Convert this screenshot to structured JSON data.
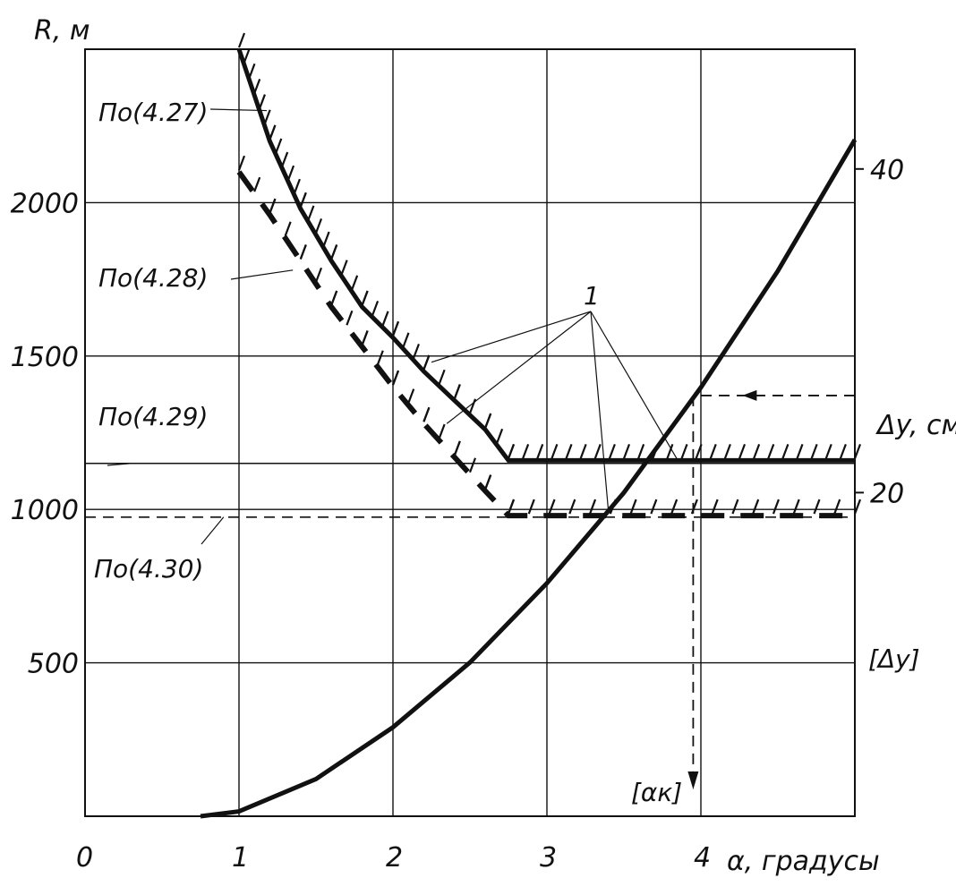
{
  "chart_data": {
    "type": "line",
    "x_axis": {
      "label": "α, градусы",
      "range": [
        0,
        5
      ],
      "ticks": [
        {
          "value": 0,
          "label": "0"
        },
        {
          "value": 1,
          "label": "1"
        },
        {
          "value": 2,
          "label": "2"
        },
        {
          "value": 3,
          "label": "3"
        },
        {
          "value": 4,
          "label": "4"
        }
      ]
    },
    "y_axis_left": {
      "label": "R, м",
      "range": [
        0,
        2500
      ],
      "ticks": [
        {
          "value": 500,
          "label": "500"
        },
        {
          "value": 1000,
          "label": "1000"
        },
        {
          "value": 1500,
          "label": "1500"
        },
        {
          "value": 2000,
          "label": "2000"
        }
      ]
    },
    "y_axis_right": {
      "label": "Δy, см",
      "range": [
        0,
        47.4
      ],
      "ticks": [
        {
          "value": 20,
          "label": "20"
        },
        {
          "value": 40,
          "label": "40"
        }
      ]
    },
    "grid": true,
    "series": [
      {
        "label": "По(4.27)",
        "axis": "left",
        "style": "solid-hatched",
        "points": [
          [
            1.0,
            2500
          ],
          [
            1.2,
            2200
          ],
          [
            1.4,
            1980
          ],
          [
            1.6,
            1810
          ],
          [
            1.8,
            1660
          ],
          [
            2.0,
            1560
          ],
          [
            2.2,
            1450
          ],
          [
            2.4,
            1355
          ],
          [
            2.6,
            1260
          ],
          [
            2.75,
            1160
          ],
          [
            5.0,
            1160
          ]
        ]
      },
      {
        "label": "По(4.28)",
        "axis": "left",
        "style": "dashed-hatched",
        "points": [
          [
            1.0,
            2100
          ],
          [
            1.2,
            1960
          ],
          [
            1.4,
            1810
          ],
          [
            1.6,
            1660
          ],
          [
            1.8,
            1530
          ],
          [
            2.0,
            1400
          ],
          [
            2.2,
            1280
          ],
          [
            2.4,
            1170
          ],
          [
            2.6,
            1060
          ],
          [
            2.75,
            980
          ],
          [
            5.0,
            980
          ]
        ]
      },
      {
        "label": "По(4.29)",
        "axis": "left",
        "style": "solid-thin",
        "points": [
          [
            0,
            1150
          ],
          [
            5,
            1150
          ]
        ]
      },
      {
        "label": "По(4.30)",
        "axis": "left",
        "style": "dashed-thin",
        "points": [
          [
            0,
            975
          ],
          [
            5,
            975
          ]
        ]
      },
      {
        "label": "",
        "axis": "right",
        "style": "solid-thick",
        "points": [
          [
            0.75,
            0
          ],
          [
            1.0,
            0.3
          ],
          [
            1.5,
            2.3
          ],
          [
            2.0,
            5.5
          ],
          [
            2.5,
            9.5
          ],
          [
            3.0,
            14.4
          ],
          [
            3.5,
            20.0
          ],
          [
            4.0,
            26.5
          ],
          [
            4.5,
            33.7
          ],
          [
            5.0,
            41.8
          ]
        ]
      }
    ],
    "annotations": [
      {
        "text": "1"
      },
      {
        "text": "[Δy]"
      },
      {
        "text": "[αк]"
      }
    ],
    "allowable": {
      "delta_y": 26,
      "alpha": 3.95
    }
  }
}
